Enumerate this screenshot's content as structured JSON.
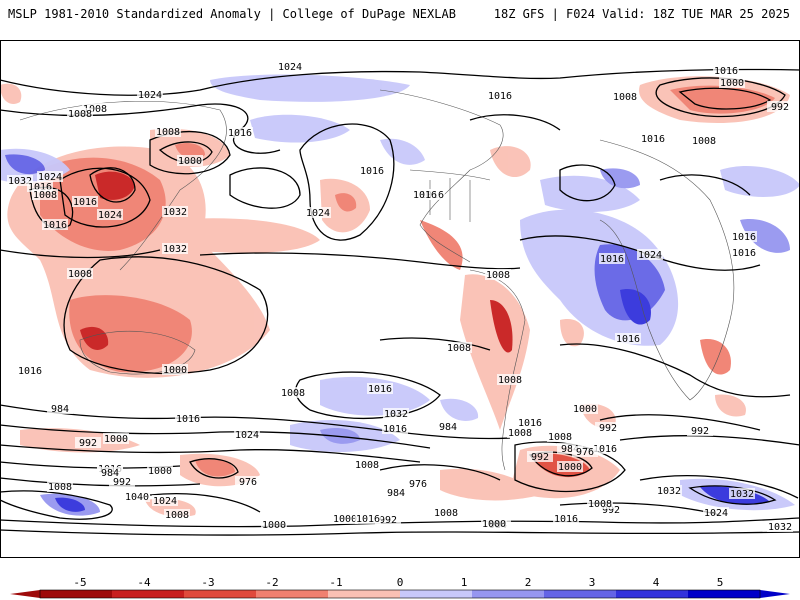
{
  "header": {
    "left": "MSLP 1981-2010 Standardized Anomaly | College of DuPage NEXLAB",
    "right": "18Z GFS | F024 Valid: 18Z TUE MAR 25 2025"
  },
  "colorbar": {
    "tick_labels": [
      "-5",
      "-4",
      "-3",
      "-2",
      "-1",
      "0",
      "1",
      "2",
      "3",
      "4",
      "5"
    ],
    "negative_colors": [
      "#9e0a0a",
      "#c81e1e",
      "#e04a3c",
      "#f08070",
      "#fac0b4"
    ],
    "positive_colors": [
      "#c8c8fa",
      "#9696f0",
      "#6464e6",
      "#3232dc",
      "#0000c8"
    ],
    "zero_color": "#ffffff"
  },
  "contour_labels": [
    "1024",
    "1024",
    "1016",
    "1000",
    "992",
    "1024",
    "1032",
    "1016",
    "1008",
    "1016",
    "1024",
    "1016",
    "1008",
    "1032",
    "1016",
    "1000",
    "1008",
    "1008",
    "1000",
    "1008",
    "1032",
    "1016",
    "1024",
    "1016",
    "1016",
    "1016",
    "1008",
    "1016",
    "1024",
    "1016",
    "1008",
    "1008",
    "1016",
    "1016",
    "1008",
    "1016",
    "1008",
    "1016",
    "1008",
    "1016",
    "1024",
    "1016",
    "1016",
    "1000",
    "992",
    "1016",
    "1000",
    "992",
    "1008",
    "984",
    "992",
    "1000",
    "1016",
    "1000",
    "992",
    "984",
    "976",
    "984",
    "976",
    "976",
    "984",
    "1008",
    "1032",
    "992",
    "1008",
    "984",
    "1040",
    "1024",
    "1000",
    "1032",
    "984",
    "992",
    "1008",
    "1016",
    "1000",
    "992",
    "1008",
    "1000",
    "1016",
    "1032",
    "1008",
    "1032",
    "1024",
    "1008",
    "1016"
  ]
}
